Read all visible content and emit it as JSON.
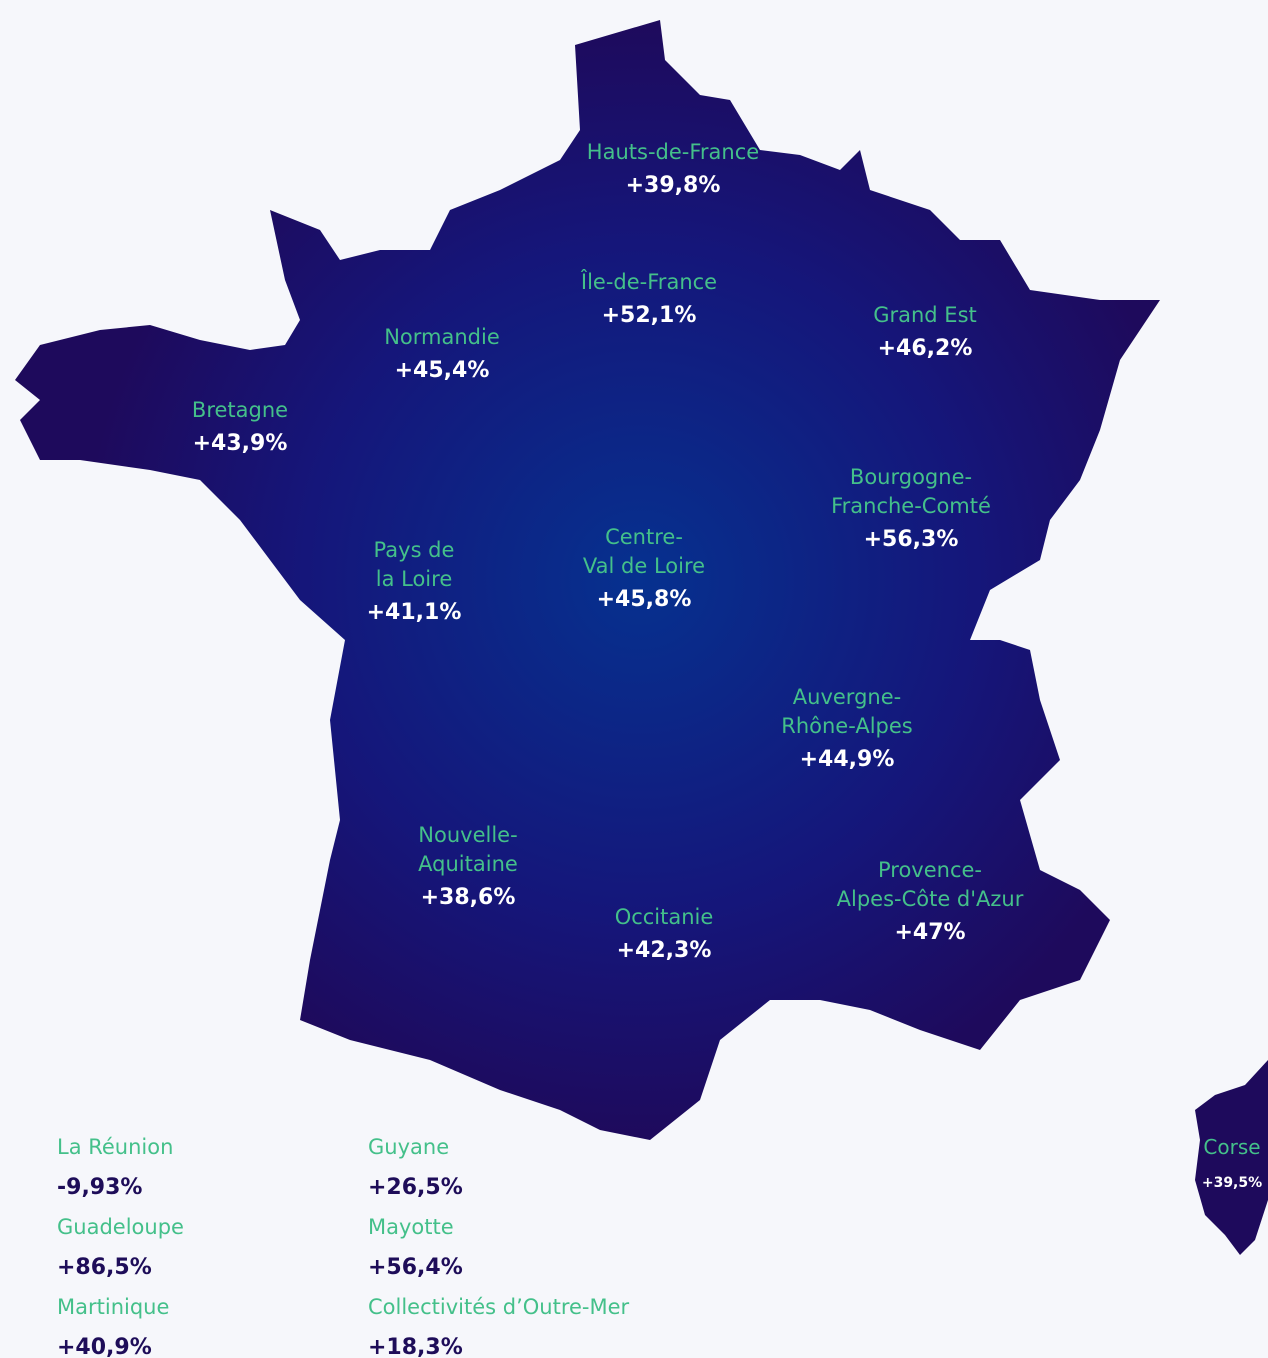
{
  "regions": [
    {
      "name": [
        "Hauts-de-France"
      ],
      "value": "+39,8%"
    },
    {
      "name": [
        "Île-de-France"
      ],
      "value": "+52,1%"
    },
    {
      "name": [
        "Grand Est"
      ],
      "value": "+46,2%"
    },
    {
      "name": [
        "Normandie"
      ],
      "value": "+45,4%"
    },
    {
      "name": [
        "Bretagne"
      ],
      "value": "+43,9%"
    },
    {
      "name": [
        "Bourgogne-",
        "Franche-Comté"
      ],
      "value": "+56,3%"
    },
    {
      "name": [
        "Pays de",
        "la Loire"
      ],
      "value": "+41,1%"
    },
    {
      "name": [
        "Centre-",
        "Val de Loire"
      ],
      "value": "+45,8%"
    },
    {
      "name": [
        "Auvergne-",
        "Rhône-Alpes"
      ],
      "value": "+44,9%"
    },
    {
      "name": [
        "Nouvelle-",
        "Aquitaine"
      ],
      "value": "+38,6%"
    },
    {
      "name": [
        "Occitanie"
      ],
      "value": "+42,3%"
    },
    {
      "name": [
        "Provence-",
        "Alpes-Côte d'Azur"
      ],
      "value": "+47%"
    },
    {
      "name": [
        "Corse"
      ],
      "value": "+39,5%"
    }
  ],
  "overseas": [
    {
      "name": "La Réunion",
      "value": "-9,93%"
    },
    {
      "name": "Guadeloupe",
      "value": "+86,5%"
    },
    {
      "name": "Martinique",
      "value": "+40,9%"
    },
    {
      "name": "Guyane",
      "value": "+26,5%"
    },
    {
      "name": "Mayotte",
      "value": "+56,4%"
    },
    {
      "name": "Collectivités d’Outre-Mer",
      "value": "+18,3%"
    }
  ]
}
